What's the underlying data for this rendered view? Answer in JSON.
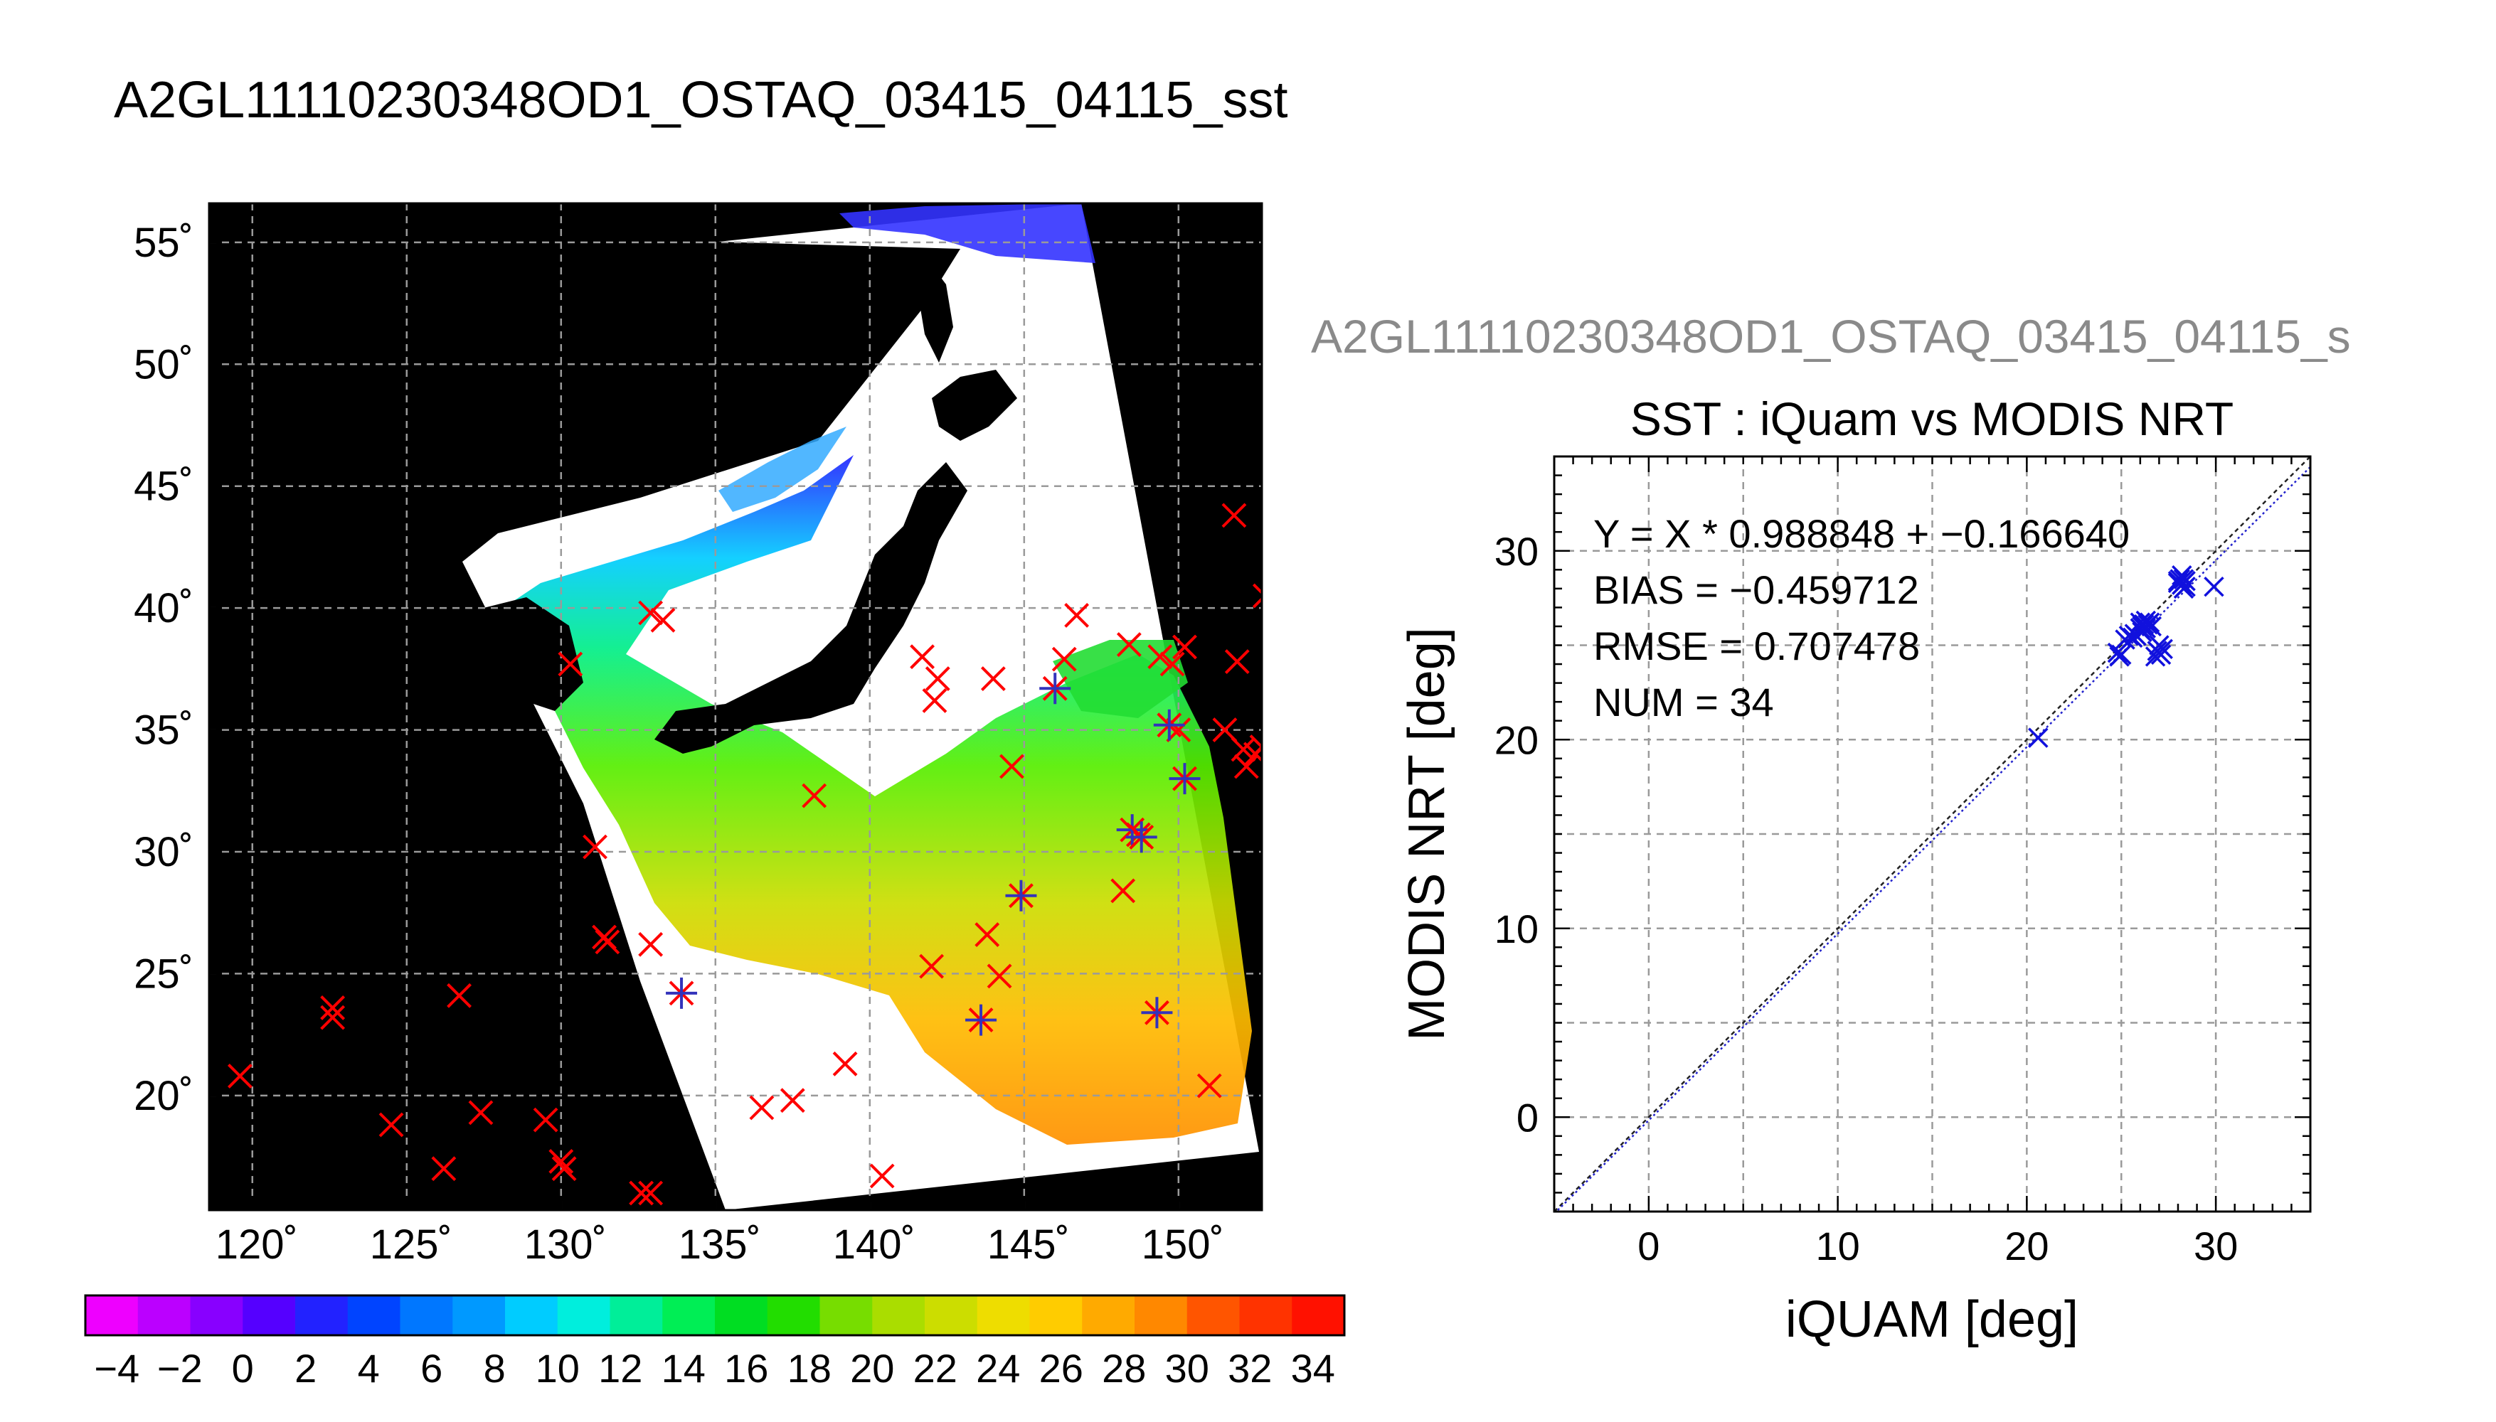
{
  "figure": {
    "title": "A2GL11110230348OD1_OSTAQ_03415_04115_sst",
    "subtitle_truncated": "A2GL11110230348OD1_OSTAQ_03415_04115_s"
  },
  "map": {
    "type": "map",
    "x_ticks": [
      "120˚",
      "125˚",
      "130˚",
      "135˚",
      "140˚",
      "145˚",
      "150˚"
    ],
    "x_tick_values": [
      120,
      125,
      130,
      135,
      140,
      145,
      150
    ],
    "y_ticks": [
      "55˚",
      "50˚",
      "45˚",
      "40˚",
      "35˚",
      "30˚",
      "25˚",
      "20˚"
    ],
    "y_tick_values": [
      55,
      50,
      45,
      40,
      35,
      30,
      25,
      20
    ],
    "lon_range": [
      118.6,
      152.7
    ],
    "lat_range": [
      15.3,
      56.6
    ],
    "colors": {
      "background": "#000000",
      "swath_cloud": "#ffffff",
      "buoy_marker": "#ff0000",
      "matchup_marker": "#3333bb",
      "grid": "#9a9a9a"
    },
    "buoys": [
      [
        119.6,
        20.8
      ],
      [
        122.6,
        23.6
      ],
      [
        122.6,
        23.2
      ],
      [
        124.5,
        18.8
      ],
      [
        126.2,
        17.0
      ],
      [
        126.7,
        24.1
      ],
      [
        127.4,
        19.3
      ],
      [
        129.5,
        19.0
      ],
      [
        130.0,
        17.3
      ],
      [
        130.1,
        17.0
      ],
      [
        130.3,
        37.7
      ],
      [
        131.1,
        30.2
      ],
      [
        131.4,
        26.5
      ],
      [
        131.5,
        26.3
      ],
      [
        132.6,
        16.0
      ],
      [
        132.9,
        16.0
      ],
      [
        132.9,
        26.2
      ],
      [
        132.9,
        39.8
      ],
      [
        133.3,
        39.5
      ],
      [
        138.2,
        32.3
      ],
      [
        136.5,
        19.5
      ],
      [
        137.5,
        19.8
      ],
      [
        139.2,
        21.3
      ],
      [
        140.4,
        16.7
      ],
      [
        141.7,
        38.0
      ],
      [
        142.2,
        37.1
      ],
      [
        142.1,
        36.2
      ],
      [
        142.0,
        25.3
      ],
      [
        143.8,
        26.6
      ],
      [
        144.0,
        37.1
      ],
      [
        144.2,
        24.9
      ],
      [
        144.6,
        33.5
      ],
      [
        146.3,
        37.9
      ],
      [
        146.7,
        39.7
      ],
      [
        148.4,
        38.5
      ],
      [
        148.2,
        28.4
      ],
      [
        148.7,
        30.7
      ],
      [
        149.4,
        38.0
      ],
      [
        149.8,
        37.7
      ],
      [
        150.2,
        38.4
      ],
      [
        150.0,
        35.0
      ],
      [
        151.5,
        35.0
      ],
      [
        151.0,
        20.4
      ],
      [
        151.8,
        43.8
      ],
      [
        151.9,
        37.8
      ],
      [
        152.1,
        34.2
      ],
      [
        152.2,
        33.5
      ],
      [
        152.8,
        40.5
      ],
      [
        152.7,
        34.3
      ],
      [
        152.5,
        34.0
      ]
    ],
    "matchups": [
      [
        133.9,
        24.2
      ],
      [
        143.6,
        23.1
      ],
      [
        144.9,
        28.2
      ],
      [
        146.0,
        36.7
      ],
      [
        148.5,
        30.9
      ],
      [
        148.8,
        30.6
      ],
      [
        149.3,
        23.4
      ],
      [
        149.7,
        35.2
      ],
      [
        150.2,
        33.0
      ]
    ]
  },
  "colorbar": {
    "labels": [
      "−4",
      "−2",
      "0",
      "2",
      "4",
      "6",
      "8",
      "10",
      "12",
      "14",
      "16",
      "18",
      "20",
      "22",
      "24",
      "26",
      "28",
      "30",
      "32",
      "34"
    ],
    "values": [
      -4,
      -2,
      0,
      2,
      4,
      6,
      8,
      10,
      12,
      14,
      16,
      18,
      20,
      22,
      24,
      26,
      28,
      30,
      32,
      34
    ],
    "segment_colors": [
      "#ee00ff",
      "#bb00ff",
      "#8800ff",
      "#5500ff",
      "#2222ff",
      "#0044ff",
      "#0077ff",
      "#0099ff",
      "#00ccff",
      "#00eedd",
      "#00ee99",
      "#00ee55",
      "#00dd22",
      "#22dd00",
      "#77dd00",
      "#aadd00",
      "#ccdd00",
      "#eedd00",
      "#ffcc00",
      "#ffaa00",
      "#ff8800",
      "#ff5500",
      "#ff3300",
      "#ff1100"
    ]
  },
  "chart_data": {
    "type": "scatter",
    "title": "SST : iQuam vs MODIS NRT",
    "xlabel": "iQUAM [deg]",
    "ylabel": "MODIS NRT [deg]",
    "xlim": [
      -5,
      35
    ],
    "ylim": [
      -5,
      35
    ],
    "x_ticks": [
      "0",
      "10",
      "20",
      "30"
    ],
    "x_tick_values": [
      0,
      10,
      20,
      30
    ],
    "y_ticks": [
      "0",
      "10",
      "20",
      "30"
    ],
    "y_tick_values": [
      0,
      10,
      20,
      30
    ],
    "annotations": [
      "Y = X * 0.988848 + −0.166640",
      "BIAS = −0.459712",
      "RMSE = 0.707478",
      "NUM = 34"
    ],
    "fit": {
      "slope": 0.988848,
      "intercept": -0.16664
    },
    "marker_color": "#1111dd",
    "grid": true,
    "points": [
      [
        20.6,
        20.1
      ],
      [
        24.9,
        24.4
      ],
      [
        25.0,
        24.5
      ],
      [
        25.2,
        25.3
      ],
      [
        25.4,
        25.5
      ],
      [
        25.7,
        25.6
      ],
      [
        25.8,
        25.5
      ],
      [
        26.0,
        25.9
      ],
      [
        26.1,
        26.0
      ],
      [
        26.2,
        26.1
      ],
      [
        26.3,
        25.9
      ],
      [
        26.4,
        26.1
      ],
      [
        26.5,
        26.2
      ],
      [
        26.6,
        26.0
      ],
      [
        26.0,
        26.2
      ],
      [
        26.3,
        26.3
      ],
      [
        26.8,
        24.4
      ],
      [
        26.9,
        24.7
      ],
      [
        27.0,
        25.0
      ],
      [
        27.1,
        24.5
      ],
      [
        27.2,
        24.8
      ],
      [
        28.0,
        28.3
      ],
      [
        28.1,
        28.5
      ],
      [
        28.2,
        28.2
      ],
      [
        28.3,
        28.5
      ],
      [
        28.4,
        28.1
      ],
      [
        28.2,
        28.7
      ],
      [
        28.3,
        28.0
      ],
      [
        29.9,
        28.1
      ],
      [
        28.0,
        28.4
      ],
      [
        26.1,
        25.7
      ],
      [
        25.6,
        25.4
      ],
      [
        24.8,
        24.6
      ],
      [
        28.4,
        28.4
      ]
    ]
  }
}
